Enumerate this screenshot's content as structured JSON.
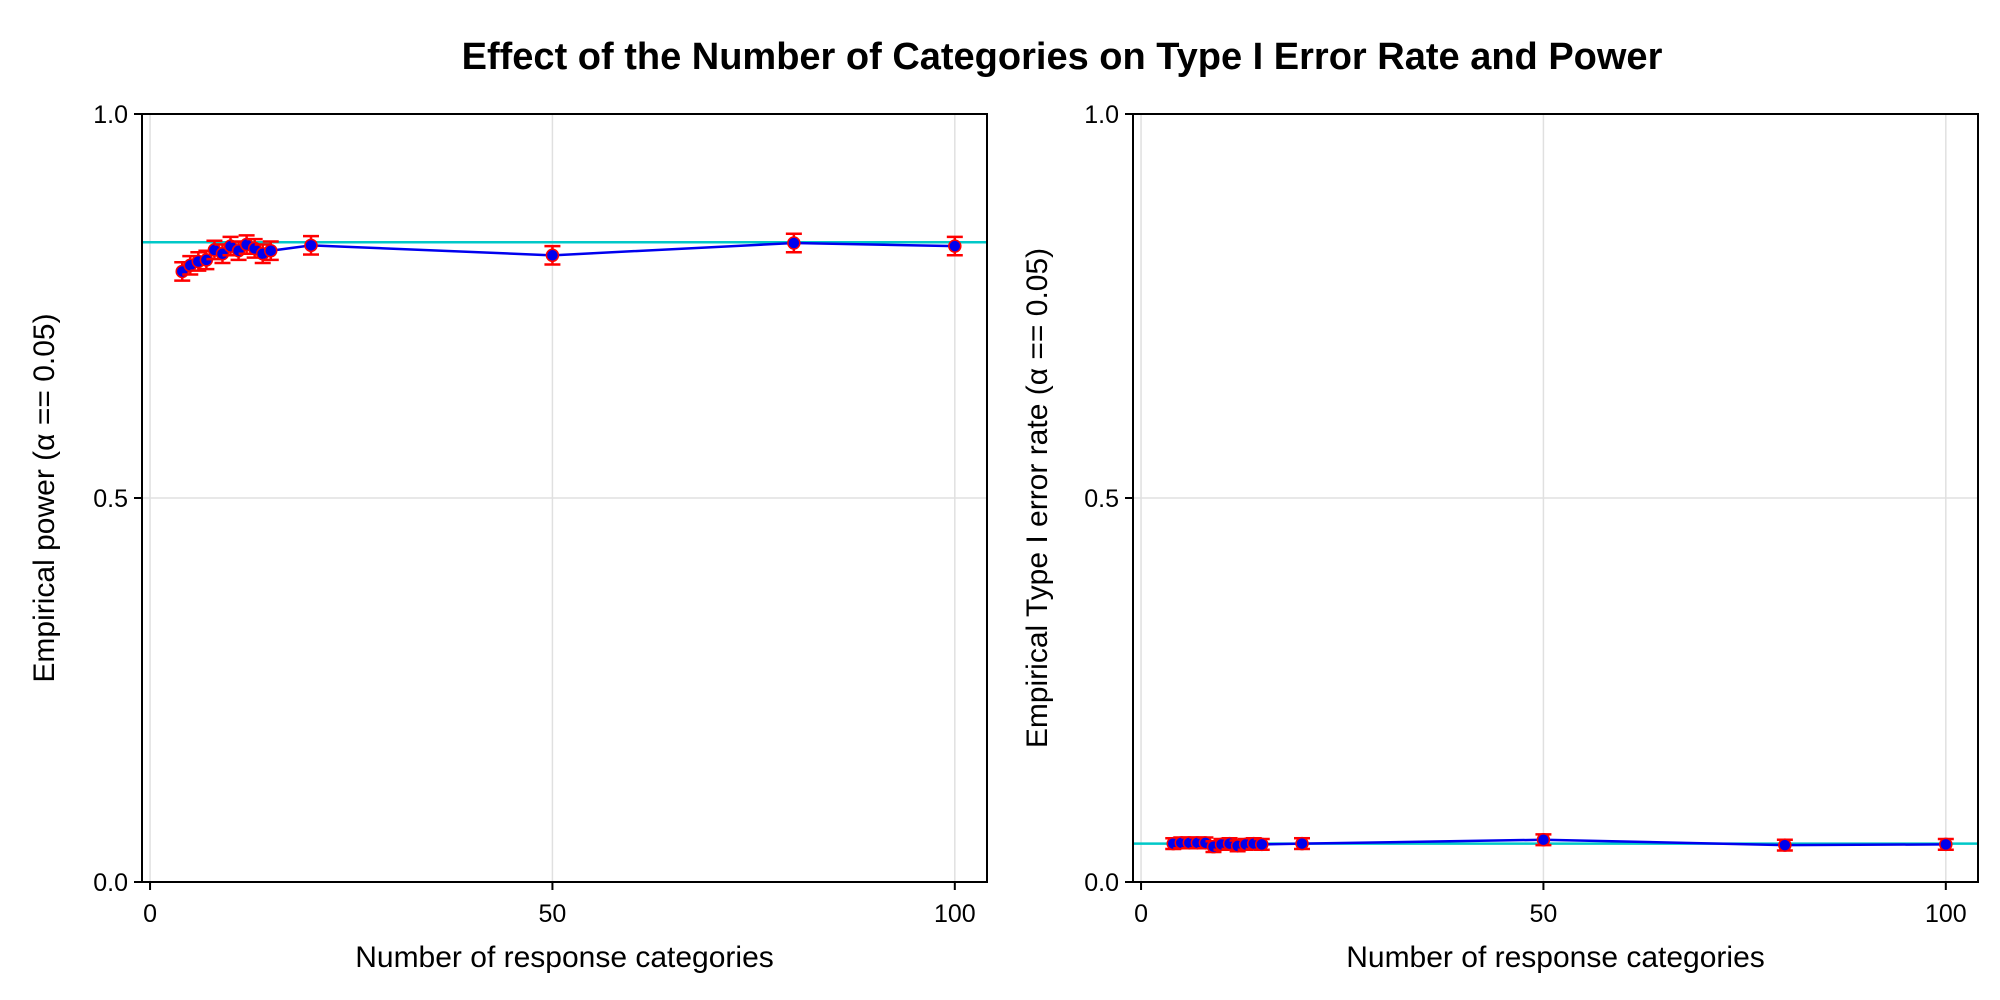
{
  "figure": {
    "title": "Effect of the Number of Categories on Type I Error Rate and Power"
  },
  "chart_data": [
    {
      "type": "line",
      "xlabel": "Number of response categories",
      "ylabel": "Empirical power (α == 0.05)",
      "xlim": [
        -1,
        104
      ],
      "ylim": [
        0,
        1
      ],
      "xticks": [
        0,
        50,
        100
      ],
      "yticks": [
        0.0,
        0.5,
        1.0
      ],
      "xtick_labels": [
        "0",
        "50",
        "100"
      ],
      "ytick_labels": [
        "0.0",
        "0.5",
        "1.0"
      ],
      "grid": true,
      "reference_line": 0.833,
      "series": [
        {
          "x": [
            4,
            5,
            6,
            7,
            8,
            9,
            10,
            11,
            12,
            13,
            14,
            15,
            20,
            50,
            80,
            100
          ],
          "y": [
            0.795,
            0.803,
            0.808,
            0.81,
            0.823,
            0.818,
            0.828,
            0.822,
            0.83,
            0.825,
            0.818,
            0.822,
            0.829,
            0.816,
            0.832,
            0.828
          ],
          "err": [
            0.012,
            0.012,
            0.012,
            0.012,
            0.012,
            0.012,
            0.012,
            0.012,
            0.012,
            0.012,
            0.012,
            0.012,
            0.012,
            0.012,
            0.012,
            0.012
          ]
        }
      ]
    },
    {
      "type": "line",
      "xlabel": "Number of response categories",
      "ylabel": "Empirical Type I error rate (α == 0.05)",
      "xlim": [
        -1,
        104
      ],
      "ylim": [
        0,
        1
      ],
      "xticks": [
        0,
        50,
        100
      ],
      "yticks": [
        0.0,
        0.5,
        1.0
      ],
      "xtick_labels": [
        "0",
        "50",
        "100"
      ],
      "ytick_labels": [
        "0.0",
        "0.5",
        "1.0"
      ],
      "grid": true,
      "reference_line": 0.05,
      "series": [
        {
          "x": [
            4,
            5,
            6,
            7,
            8,
            9,
            10,
            11,
            12,
            13,
            14,
            15,
            20,
            50,
            80,
            100
          ],
          "y": [
            0.05,
            0.051,
            0.051,
            0.051,
            0.051,
            0.046,
            0.049,
            0.05,
            0.047,
            0.049,
            0.05,
            0.049,
            0.05,
            0.055,
            0.048,
            0.049
          ],
          "err": [
            0.007,
            0.007,
            0.007,
            0.007,
            0.007,
            0.007,
            0.007,
            0.007,
            0.007,
            0.007,
            0.007,
            0.007,
            0.007,
            0.007,
            0.007,
            0.007
          ]
        }
      ]
    }
  ],
  "colors": {
    "series_line": "#0000ee",
    "marker_fill": "#0000ee",
    "error_bar": "#ff0000",
    "reference_line": "#00c8c8",
    "grid": "#e0e0e0",
    "axis": "#000000"
  }
}
